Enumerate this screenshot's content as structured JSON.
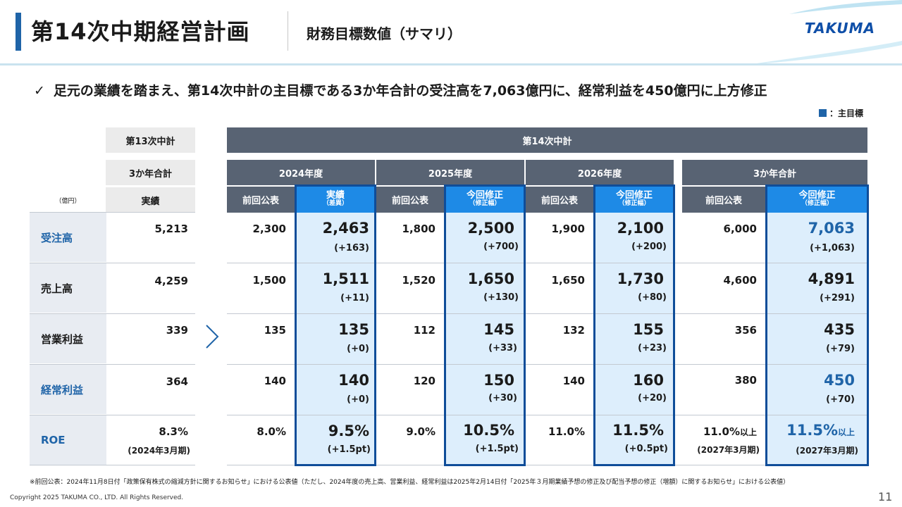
{
  "header": {
    "title": "第14次中期経営計画",
    "subtitle": "財務目標数値（サマリ）",
    "logo": "TAKUMA"
  },
  "bullet": {
    "check": "✓",
    "text": "足元の業績を踏まえ、第14次中計の主目標である3か年合計の受注高を7,063億円に、経常利益を450億円に上方修正"
  },
  "legend": {
    "label": "：主目標",
    "color": "#1f64a8"
  },
  "table": {
    "unit": "（億円）",
    "plan13": {
      "title": "第13次中計",
      "sub": "3か年合計",
      "col": "実績"
    },
    "plan14": {
      "title": "第14次中計"
    },
    "years": [
      "2024年度",
      "2025年度",
      "2026年度"
    ],
    "total_title": "3か年合計",
    "col_prev": "前回公表",
    "col_actual": "実績",
    "col_actual_sub": "（差異）",
    "col_rev": "今回修正",
    "col_rev_sub": "（修正幅）",
    "rows": [
      {
        "label": "受注高",
        "main": true,
        "p13": "5,213",
        "y24p": "2,300",
        "y24a": "2,463",
        "y24d": "(+163)",
        "y25p": "1,800",
        "y25r": "2,500",
        "y25d": "(+700)",
        "y26p": "1,900",
        "y26r": "2,100",
        "y26d": "(+200)",
        "tp": "6,000",
        "tr": "7,063",
        "td": "(+1,063)"
      },
      {
        "label": "売上高",
        "main": false,
        "p13": "4,259",
        "y24p": "1,500",
        "y24a": "1,511",
        "y24d": "(+11)",
        "y25p": "1,520",
        "y25r": "1,650",
        "y25d": "(+130)",
        "y26p": "1,650",
        "y26r": "1,730",
        "y26d": "(+80)",
        "tp": "4,600",
        "tr": "4,891",
        "td": "(+291)"
      },
      {
        "label": "営業利益",
        "main": false,
        "p13": "339",
        "y24p": "135",
        "y24a": "135",
        "y24d": "(+0)",
        "y25p": "112",
        "y25r": "145",
        "y25d": "(+33)",
        "y26p": "132",
        "y26r": "155",
        "y26d": "(+23)",
        "tp": "356",
        "tr": "435",
        "td": "(+79)"
      },
      {
        "label": "経常利益",
        "main": true,
        "p13": "364",
        "y24p": "140",
        "y24a": "140",
        "y24d": "(+0)",
        "y25p": "120",
        "y25r": "150",
        "y25d": "(+30)",
        "y26p": "140",
        "y26r": "160",
        "y26d": "(+20)",
        "tp": "380",
        "tr": "450",
        "td": "(+70)"
      },
      {
        "label": "ROE",
        "main": true,
        "p13": "8.3%",
        "p13note": "(2024年3月期)",
        "y24p": "8.0%",
        "y24a": "9.5%",
        "y24d": "(+1.5pt)",
        "y25p": "9.0%",
        "y25r": "10.5%",
        "y25d": "(+1.5pt)",
        "y26p": "11.0%",
        "y26r": "11.5%",
        "y26d": "(+0.5pt)",
        "tp": "11.0%",
        "tpsuf": "以上",
        "tpnote": "(2027年3月期)",
        "tr": "11.5%",
        "trsuf": "以上",
        "trnote": "(2027年3月期)"
      }
    ]
  },
  "footnote": "※前回公表：2024年11月8日付「政策保有株式の縮減方針に関するお知らせ」における公表値（ただし、2024年度の売上高、営業利益、経常利益は2025年2月14日付「2025年３月期業績予想の修正及び配当予想の修正（増額）に関するお知らせ」における公表値）",
  "copyright": "Copyright  2025 TAKUMA CO., LTD.  All Rights Reserved.",
  "page_number": "11"
}
